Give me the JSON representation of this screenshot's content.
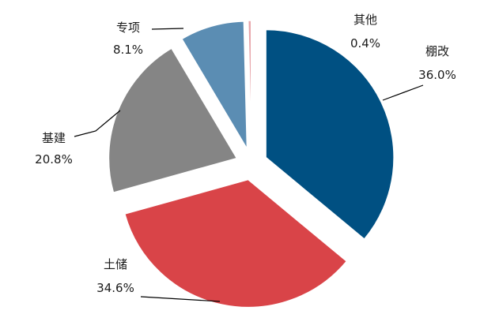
{
  "chart_data": {
    "type": "pie",
    "slices": [
      {
        "name": "棚改",
        "value": 36.0,
        "value_label": "36.0%",
        "color": "#005082",
        "exploded": true
      },
      {
        "name": "土储",
        "value": 34.6,
        "value_label": "34.6%",
        "color": "#d94448",
        "exploded": true
      },
      {
        "name": "基建",
        "value": 20.8,
        "value_label": "20.8%",
        "color": "#858585",
        "exploded": true
      },
      {
        "name": "专项",
        "value": 8.1,
        "value_label": "8.1%",
        "color": "#5b8db3",
        "exploded": true
      },
      {
        "name": "其他",
        "value": 0.4,
        "value_label": "0.4%",
        "color": "#e8a6ab",
        "exploded": true
      }
    ],
    "start_angle_deg": 0,
    "direction": "clockwise",
    "legend": "none",
    "labels": "outside with leader lines"
  }
}
